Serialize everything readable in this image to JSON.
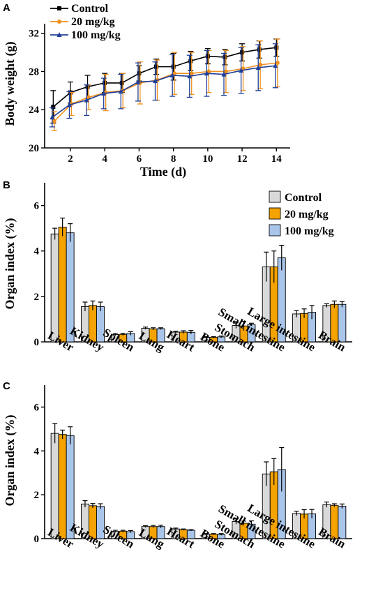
{
  "colors": {
    "control": "#000000",
    "mg20": "#f0901e",
    "mg100": "#1f3f99",
    "bar_control": "#d9d9d9",
    "bar_mg20": "#f5a300",
    "bar_mg100": "#a9c6ea"
  },
  "chart_data": [
    {
      "panel": "A",
      "type": "line",
      "xlabel": "Time (d)",
      "ylabel": "Body weight (g)",
      "xlim": [
        0.5,
        14.8
      ],
      "ylim": [
        20,
        33
      ],
      "xticks": [
        2,
        4,
        6,
        8,
        10,
        12,
        14
      ],
      "yticks": [
        20,
        24,
        28,
        32
      ],
      "x": [
        1,
        2,
        3,
        4,
        5,
        6,
        7,
        8,
        9,
        10,
        11,
        12,
        13,
        14
      ],
      "legend_position": "top-left",
      "series": [
        {
          "name": "Control",
          "values": [
            24.3,
            25.8,
            26.4,
            26.8,
            26.8,
            27.8,
            28.5,
            28.5,
            29.1,
            29.6,
            29.5,
            30.0,
            30.3,
            30.5
          ],
          "errors": [
            1.7,
            1.1,
            1.2,
            1.0,
            1.0,
            0.8,
            0.8,
            1.4,
            1.0,
            0.8,
            0.8,
            0.9,
            0.9,
            0.9
          ],
          "marker": "square"
        },
        {
          "name": "20 mg/kg",
          "values": [
            22.8,
            24.6,
            25.3,
            25.8,
            26.0,
            26.8,
            27.1,
            27.8,
            27.8,
            28.0,
            28.0,
            28.3,
            28.7,
            28.9
          ],
          "errors": [
            1.0,
            1.2,
            1.3,
            1.9,
            1.8,
            2.2,
            2.1,
            2.2,
            2.2,
            2.2,
            2.2,
            2.3,
            2.5,
            2.5
          ],
          "marker": "circle"
        },
        {
          "name": "100 mg/kg",
          "values": [
            23.2,
            24.5,
            25.0,
            25.7,
            25.9,
            26.9,
            27.0,
            27.6,
            27.5,
            27.8,
            27.7,
            28.1,
            28.4,
            28.6
          ],
          "errors": [
            1.0,
            1.4,
            1.6,
            1.6,
            1.8,
            2.0,
            2.0,
            2.2,
            2.2,
            2.4,
            2.2,
            2.4,
            2.4,
            2.3
          ],
          "marker": "triangle"
        }
      ]
    },
    {
      "panel": "B",
      "type": "bar",
      "ylabel": "Organ index (%)",
      "ylim": [
        0,
        7
      ],
      "yticks": [
        0,
        2,
        4,
        6
      ],
      "legend_position": "top-right",
      "categories": [
        "Liver",
        "Kidney",
        "Spleen",
        "Lung",
        "Heart",
        "Bone",
        "Stomach",
        "Small intestine",
        "Large intestine",
        "Brain"
      ],
      "series": [
        {
          "name": "Control",
          "values": [
            4.75,
            1.55,
            0.32,
            0.6,
            0.43,
            0.2,
            0.72,
            3.3,
            1.23,
            1.6
          ],
          "errors": [
            0.25,
            0.2,
            0.05,
            0.05,
            0.04,
            0.03,
            0.12,
            0.65,
            0.15,
            0.08
          ]
        },
        {
          "name": "20 mg/kg",
          "values": [
            5.05,
            1.6,
            0.33,
            0.57,
            0.43,
            0.2,
            0.7,
            3.3,
            1.25,
            1.65
          ],
          "errors": [
            0.4,
            0.2,
            0.05,
            0.05,
            0.06,
            0.03,
            0.2,
            0.7,
            0.2,
            0.15
          ]
        },
        {
          "name": "100 mg/kg",
          "values": [
            4.8,
            1.55,
            0.37,
            0.58,
            0.42,
            0.22,
            0.76,
            3.7,
            1.3,
            1.65
          ],
          "errors": [
            0.4,
            0.2,
            0.08,
            0.04,
            0.08,
            0.04,
            0.06,
            0.55,
            0.3,
            0.12
          ]
        }
      ]
    },
    {
      "panel": "C",
      "type": "bar",
      "ylabel": "Organ index (%)",
      "ylim": [
        0,
        7
      ],
      "yticks": [
        0,
        2,
        4,
        6
      ],
      "categories": [
        "Liver",
        "Kidney",
        "Spleen",
        "Lung",
        "Heart",
        "Bone",
        "Stomach",
        "Small intestine",
        "Large intestine",
        "Brain"
      ],
      "series": [
        {
          "name": "Control",
          "values": [
            4.8,
            1.58,
            0.33,
            0.55,
            0.44,
            0.2,
            0.78,
            2.95,
            1.15,
            1.55
          ],
          "errors": [
            0.45,
            0.15,
            0.05,
            0.04,
            0.04,
            0.03,
            0.12,
            0.55,
            0.1,
            0.12
          ]
        },
        {
          "name": "20 mg/kg",
          "values": [
            4.75,
            1.5,
            0.34,
            0.55,
            0.41,
            0.2,
            0.7,
            3.05,
            1.12,
            1.52
          ],
          "errors": [
            0.2,
            0.1,
            0.04,
            0.05,
            0.03,
            0.03,
            0.1,
            0.6,
            0.2,
            0.07
          ]
        },
        {
          "name": "100 mg/kg",
          "values": [
            4.7,
            1.47,
            0.32,
            0.55,
            0.38,
            0.19,
            0.66,
            3.15,
            1.13,
            1.48
          ],
          "errors": [
            0.4,
            0.12,
            0.05,
            0.06,
            0.03,
            0.04,
            0.15,
            1.0,
            0.2,
            0.1
          ]
        }
      ]
    }
  ]
}
